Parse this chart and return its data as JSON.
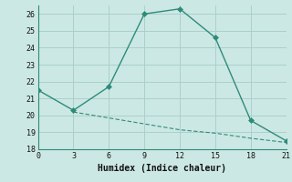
{
  "xlabel": "Humidex (Indice chaleur)",
  "line1_x": [
    0,
    3,
    6,
    9,
    12,
    15,
    18,
    21
  ],
  "line1_y": [
    21.5,
    20.3,
    21.7,
    26.0,
    26.3,
    24.6,
    19.7,
    18.5
  ],
  "line2_x": [
    3,
    6,
    9,
    12,
    15,
    18,
    21
  ],
  "line2_y": [
    20.2,
    19.85,
    19.5,
    19.15,
    18.95,
    18.65,
    18.4
  ],
  "line_color": "#2e8b7a",
  "bg_color": "#cce8e4",
  "grid_color": "#aad0cc",
  "xlim": [
    0,
    21
  ],
  "ylim": [
    18,
    26.5
  ],
  "xticks": [
    0,
    3,
    6,
    9,
    12,
    15,
    18,
    21
  ],
  "yticks": [
    18,
    19,
    20,
    21,
    22,
    23,
    24,
    25,
    26
  ],
  "markersize": 3,
  "linewidth": 1.0
}
